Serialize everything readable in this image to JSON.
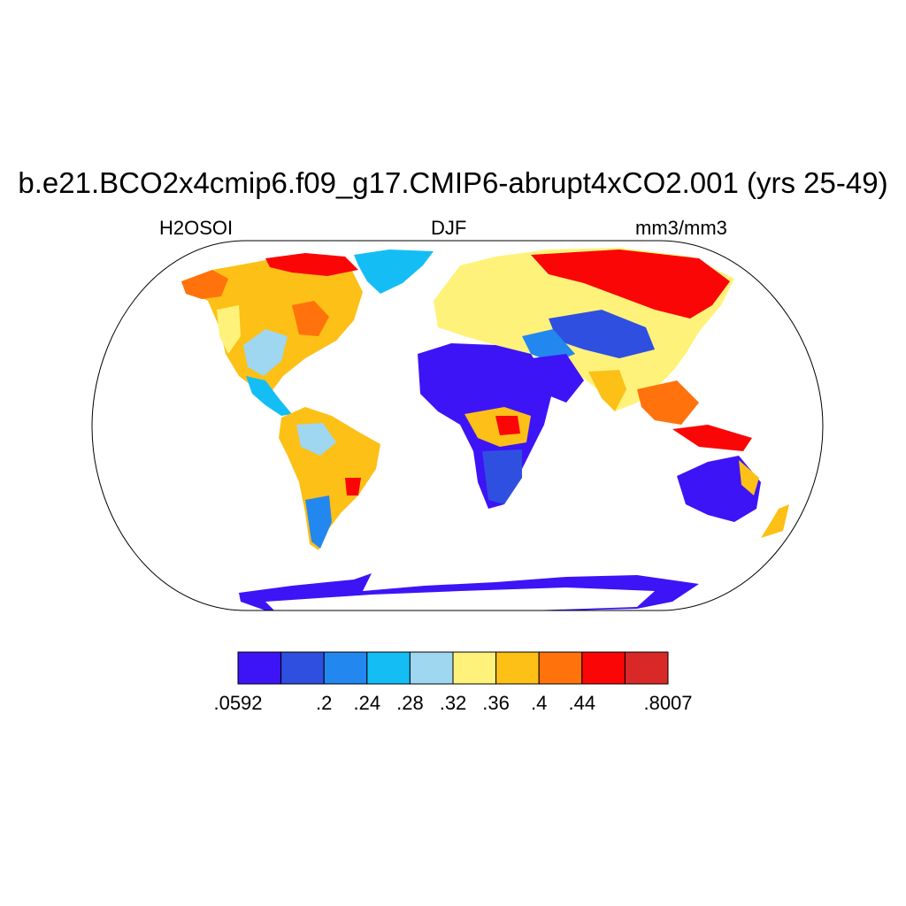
{
  "title": "b.e21.BCO2x4cmip6.f09_g17.CMIP6-abrupt4xCO2.001 (yrs 25-49)",
  "left_label": "H2OSOI",
  "center_label": "DJF",
  "right_label": "mm3/mm3",
  "colorbar": {
    "colors": [
      "#3d14f5",
      "#2f4fe0",
      "#2387f0",
      "#14bef4",
      "#9fd6f0",
      "#fff27a",
      "#fcc016",
      "#ff720c",
      "#fa0606",
      "#d82828"
    ],
    "tick_labels": [
      ".0592",
      ".2",
      ".24",
      ".28",
      ".32",
      ".36",
      ".4",
      ".44",
      ".8007"
    ],
    "tick_boundaries": [
      0,
      2,
      3,
      4,
      5,
      6,
      7,
      8,
      10
    ]
  },
  "map": {
    "projection": "Robinson",
    "variable": "H2OSOI",
    "season": "DJF"
  }
}
